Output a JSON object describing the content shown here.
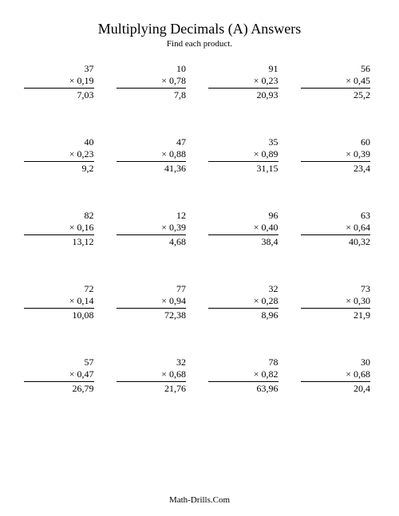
{
  "title": "Multiplying Decimals (A) Answers",
  "subtitle": "Find each product.",
  "footer": "Math-Drills.Com",
  "mult_sign": "×",
  "layout": {
    "rows": 5,
    "cols": 4
  },
  "style": {
    "background_color": "#ffffff",
    "text_color": "#000000",
    "title_fontsize": 18,
    "body_fontsize": 12,
    "font_family": "Times New Roman"
  },
  "problems": [
    {
      "a": "37",
      "b": "0,19",
      "r": "7,03"
    },
    {
      "a": "10",
      "b": "0,78",
      "r": "7,8"
    },
    {
      "a": "91",
      "b": "0,23",
      "r": "20,93"
    },
    {
      "a": "56",
      "b": "0,45",
      "r": "25,2"
    },
    {
      "a": "40",
      "b": "0,23",
      "r": "9,2"
    },
    {
      "a": "47",
      "b": "0,88",
      "r": "41,36"
    },
    {
      "a": "35",
      "b": "0,89",
      "r": "31,15"
    },
    {
      "a": "60",
      "b": "0,39",
      "r": "23,4"
    },
    {
      "a": "82",
      "b": "0,16",
      "r": "13,12"
    },
    {
      "a": "12",
      "b": "0,39",
      "r": "4,68"
    },
    {
      "a": "96",
      "b": "0,40",
      "r": "38,4"
    },
    {
      "a": "63",
      "b": "0,64",
      "r": "40,32"
    },
    {
      "a": "72",
      "b": "0,14",
      "r": "10,08"
    },
    {
      "a": "77",
      "b": "0,94",
      "r": "72,38"
    },
    {
      "a": "32",
      "b": "0,28",
      "r": "8,96"
    },
    {
      "a": "73",
      "b": "0,30",
      "r": "21,9"
    },
    {
      "a": "57",
      "b": "0,47",
      "r": "26,79"
    },
    {
      "a": "32",
      "b": "0,68",
      "r": "21,76"
    },
    {
      "a": "78",
      "b": "0,82",
      "r": "63,96"
    },
    {
      "a": "30",
      "b": "0,68",
      "r": "20,4"
    }
  ]
}
